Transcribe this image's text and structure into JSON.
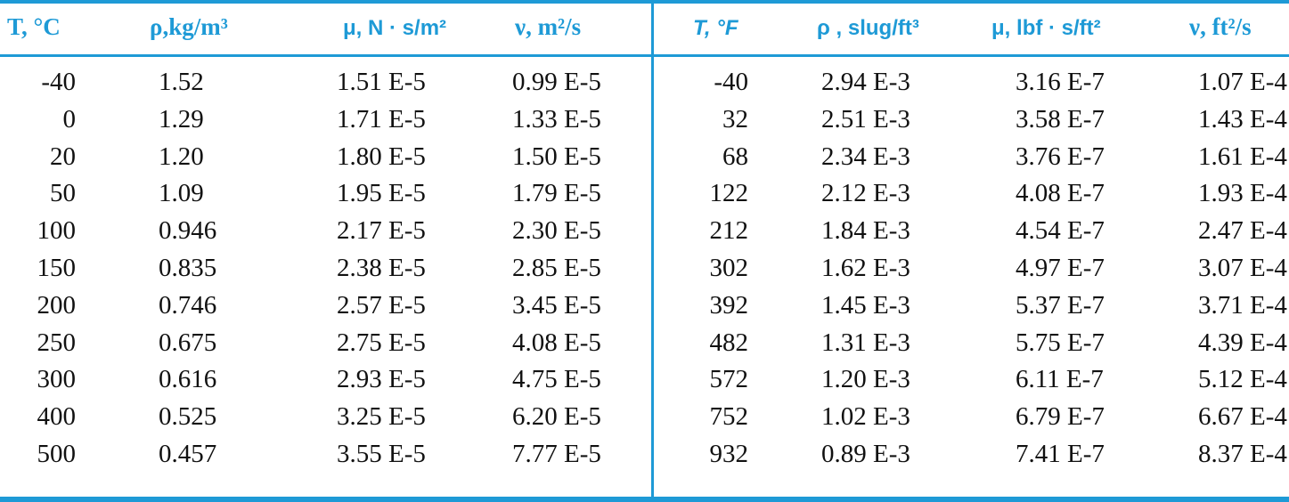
{
  "table": {
    "headers": [
      "T, °C",
      "ρ,kg/m³",
      "μ, N · s/m²",
      "ν, m²/s",
      "T, °F",
      "ρ , slug/ft³",
      "μ, lbf · s/ft²",
      "ν, ft²/s"
    ],
    "rows": [
      [
        "-40",
        "1.52",
        "1.51 E-5",
        "0.99 E-5",
        "-40",
        "2.94 E-3",
        "3.16 E-7",
        "1.07 E-4"
      ],
      [
        "0",
        "1.29",
        "1.71 E-5",
        "1.33 E-5",
        "32",
        "2.51 E-3",
        "3.58 E-7",
        "1.43 E-4"
      ],
      [
        "20",
        "1.20",
        "1.80 E-5",
        "1.50 E-5",
        "68",
        "2.34 E-3",
        "3.76 E-7",
        "1.61 E-4"
      ],
      [
        "50",
        "1.09",
        "1.95 E-5",
        "1.79 E-5",
        "122",
        "2.12 E-3",
        "4.08 E-7",
        "1.93 E-4"
      ],
      [
        "100",
        "0.946",
        "2.17 E-5",
        "2.30 E-5",
        "212",
        "1.84 E-3",
        "4.54 E-7",
        "2.47 E-4"
      ],
      [
        "150",
        "0.835",
        "2.38 E-5",
        "2.85 E-5",
        "302",
        "1.62 E-3",
        "4.97 E-7",
        "3.07 E-4"
      ],
      [
        "200",
        "0.746",
        "2.57 E-5",
        "3.45 E-5",
        "392",
        "1.45 E-3",
        "5.37 E-7",
        "3.71 E-4"
      ],
      [
        "250",
        "0.675",
        "2.75 E-5",
        "4.08 E-5",
        "482",
        "1.31 E-3",
        "5.75 E-7",
        "4.39 E-4"
      ],
      [
        "300",
        "0.616",
        "2.93 E-5",
        "4.75 E-5",
        "572",
        "1.20 E-3",
        "6.11 E-7",
        "5.12 E-4"
      ],
      [
        "400",
        "0.525",
        "3.25 E-5",
        "6.20 E-5",
        "752",
        "1.02 E-3",
        "6.79 E-7",
        "6.67 E-4"
      ],
      [
        "500",
        "0.457",
        "3.55 E-5",
        "7.77 E-5",
        "932",
        "0.89 E-3",
        "7.41 E-7",
        "8.37 E-4"
      ]
    ]
  }
}
